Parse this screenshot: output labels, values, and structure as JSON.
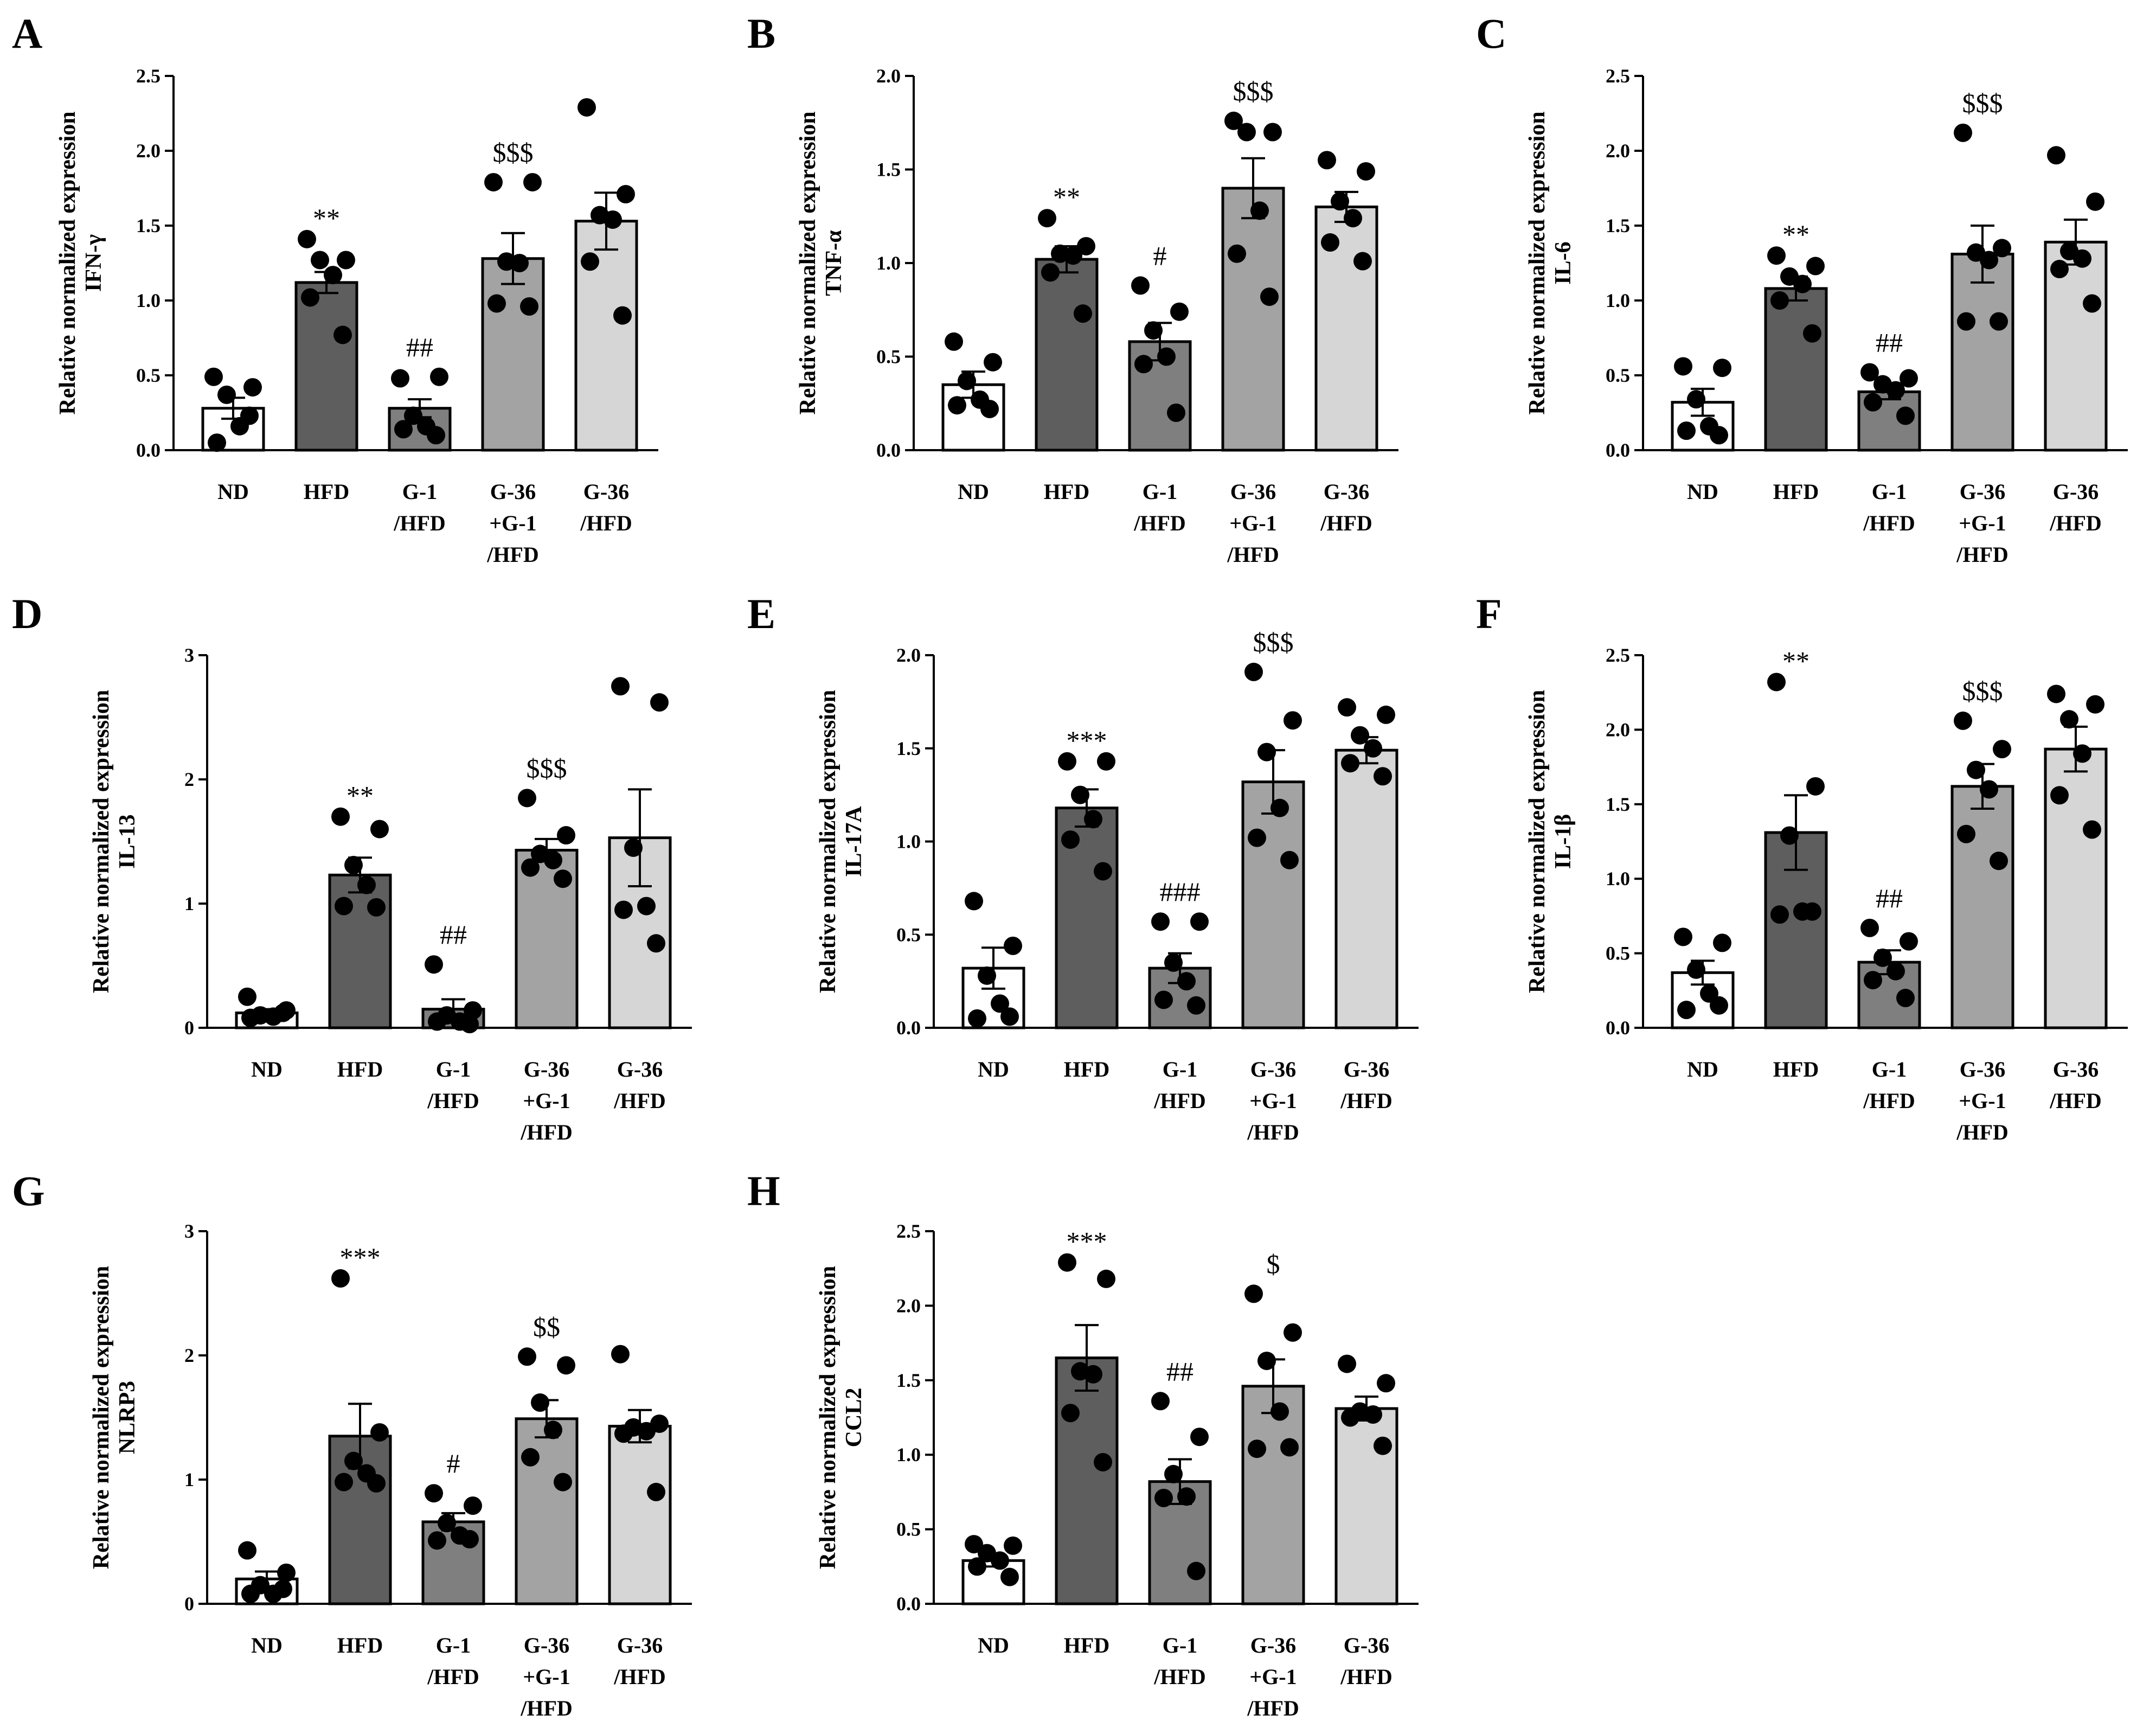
{
  "figure": {
    "ylabel": "Relative normalized expression"
  },
  "colors": {
    "ND": "#ffffff",
    "HFD": "#5e5e5e",
    "G-1/HFD": "#7f7f7f",
    "G-36+G-1/HFD": "#a3a3a3",
    "G-36/HFD": "#d6d6d6",
    "dot": "#000000"
  },
  "chart_data": [
    {
      "panel": "A",
      "type": "bar",
      "ylabel": "IFN-γ",
      "ylim": [
        0,
        2.5
      ],
      "yticks": [
        "0.0",
        "0.5",
        "1.0",
        "1.5",
        "2.0",
        "2.5"
      ],
      "categories": [
        [
          "ND"
        ],
        [
          "HFD"
        ],
        [
          "G-1",
          "/HFD"
        ],
        [
          "G-36",
          "+G-1",
          "/HFD"
        ],
        [
          "G-36",
          "/HFD"
        ]
      ],
      "means": [
        0.28,
        1.12,
        0.28,
        1.28,
        1.53
      ],
      "sem": [
        0.07,
        0.07,
        0.06,
        0.17,
        0.19
      ],
      "points": [
        [
          0.49,
          0.42,
          0.37,
          0.16,
          0.05,
          0.23
        ],
        [
          1.41,
          1.27,
          1.27,
          1.17,
          1.02,
          0.77
        ],
        [
          0.48,
          0.49,
          0.23,
          0.16,
          0.14,
          0.1
        ],
        [
          1.79,
          1.79,
          1.26,
          1.25,
          0.98,
          0.96
        ],
        [
          2.29,
          1.71,
          1.57,
          1.54,
          1.26,
          0.9
        ]
      ],
      "sig": [
        "",
        "**",
        "##",
        "$$$",
        ""
      ]
    },
    {
      "panel": "B",
      "type": "bar",
      "ylabel": "TNF-α",
      "ylim": [
        0,
        2.0
      ],
      "yticks": [
        "0.0",
        "0.5",
        "1.0",
        "1.5",
        "2.0"
      ],
      "categories": [
        [
          "ND"
        ],
        [
          "HFD"
        ],
        [
          "G-1",
          "/HFD"
        ],
        [
          "G-36",
          "+G-1",
          "/HFD"
        ],
        [
          "G-36",
          "/HFD"
        ]
      ],
      "means": [
        0.35,
        1.02,
        0.58,
        1.4,
        1.3
      ],
      "sem": [
        0.07,
        0.07,
        0.1,
        0.16,
        0.08
      ],
      "points": [
        [
          0.58,
          0.47,
          0.37,
          0.27,
          0.24,
          0.22
        ],
        [
          1.24,
          1.09,
          1.05,
          1.04,
          0.95,
          0.73
        ],
        [
          0.88,
          0.74,
          0.64,
          0.5,
          0.46,
          0.2
        ],
        [
          1.76,
          1.7,
          1.7,
          1.28,
          1.05,
          0.82
        ],
        [
          1.55,
          1.49,
          1.33,
          1.24,
          1.11,
          1.01
        ]
      ],
      "sig": [
        "",
        "**",
        "#",
        "$$$",
        ""
      ]
    },
    {
      "panel": "C",
      "type": "bar",
      "ylabel": "IL-6",
      "ylim": [
        0,
        2.5
      ],
      "yticks": [
        "0.0",
        "0.5",
        "1.0",
        "1.5",
        "2.0",
        "2.5"
      ],
      "categories": [
        [
          "ND"
        ],
        [
          "HFD"
        ],
        [
          "G-1",
          "/HFD"
        ],
        [
          "G-36",
          "+G-1",
          "/HFD"
        ],
        [
          "G-36",
          "/HFD"
        ]
      ],
      "means": [
        0.32,
        1.08,
        0.39,
        1.31,
        1.39
      ],
      "sem": [
        0.09,
        0.08,
        0.05,
        0.19,
        0.15
      ],
      "points": [
        [
          0.56,
          0.55,
          0.34,
          0.16,
          0.13,
          0.1
        ],
        [
          1.3,
          1.23,
          1.16,
          1.11,
          1.0,
          0.78
        ],
        [
          0.52,
          0.48,
          0.44,
          0.4,
          0.32,
          0.23
        ],
        [
          2.12,
          1.35,
          1.32,
          1.27,
          0.86,
          0.86
        ],
        [
          1.97,
          1.66,
          1.33,
          1.28,
          1.21,
          0.98
        ]
      ],
      "sig": [
        "",
        "**",
        "##",
        "$$$",
        ""
      ]
    },
    {
      "panel": "D",
      "type": "bar",
      "ylabel": "IL-13",
      "ylim": [
        0,
        3
      ],
      "yticks": [
        "0",
        "1",
        "2",
        "3"
      ],
      "categories": [
        [
          "ND"
        ],
        [
          "HFD"
        ],
        [
          "G-1",
          "/HFD"
        ],
        [
          "G-36",
          "+G-1",
          "/HFD"
        ],
        [
          "G-36",
          "/HFD"
        ]
      ],
      "means": [
        0.12,
        1.23,
        0.15,
        1.43,
        1.53
      ],
      "sem": [
        0.03,
        0.14,
        0.08,
        0.09,
        0.39
      ],
      "points": [
        [
          0.25,
          0.14,
          0.1,
          0.09,
          0.08,
          0.12
        ],
        [
          1.7,
          1.6,
          1.31,
          1.15,
          0.98,
          0.97
        ],
        [
          0.51,
          0.14,
          0.1,
          0.05,
          0.05,
          0.03
        ],
        [
          1.85,
          1.55,
          1.4,
          1.35,
          1.29,
          1.2
        ],
        [
          2.75,
          2.62,
          1.45,
          0.98,
          0.95,
          0.68
        ]
      ],
      "sig": [
        "",
        "**",
        "##",
        "$$$",
        ""
      ]
    },
    {
      "panel": "E",
      "type": "bar",
      "ylabel": "IL-17A",
      "ylim": [
        0,
        2.0
      ],
      "yticks": [
        "0.0",
        "0.5",
        "1.0",
        "1.5",
        "2.0"
      ],
      "categories": [
        [
          "ND"
        ],
        [
          "HFD"
        ],
        [
          "G-1",
          "/HFD"
        ],
        [
          "G-36",
          "+G-1",
          "/HFD"
        ],
        [
          "G-36",
          "/HFD"
        ]
      ],
      "means": [
        0.32,
        1.18,
        0.32,
        1.32,
        1.49
      ],
      "sem": [
        0.11,
        0.1,
        0.08,
        0.17,
        0.07
      ],
      "points": [
        [
          0.68,
          0.44,
          0.28,
          0.13,
          0.05,
          0.06
        ],
        [
          1.43,
          1.43,
          1.25,
          1.12,
          1.01,
          0.84
        ],
        [
          0.57,
          0.57,
          0.35,
          0.25,
          0.15,
          0.12
        ],
        [
          1.91,
          1.65,
          1.48,
          1.18,
          1.02,
          0.9
        ],
        [
          1.72,
          1.68,
          1.57,
          1.5,
          1.42,
          1.35
        ]
      ],
      "sig": [
        "",
        "***",
        "###",
        "$$$",
        ""
      ]
    },
    {
      "panel": "F",
      "type": "bar",
      "ylabel": "IL-1β",
      "ylim": [
        0,
        2.5
      ],
      "yticks": [
        "0.0",
        "0.5",
        "1.0",
        "1.5",
        "2.0",
        "2.5"
      ],
      "categories": [
        [
          "ND"
        ],
        [
          "HFD"
        ],
        [
          "G-1",
          "/HFD"
        ],
        [
          "G-36",
          "+G-1",
          "/HFD"
        ],
        [
          "G-36",
          "/HFD"
        ]
      ],
      "means": [
        0.37,
        1.31,
        0.44,
        1.62,
        1.87
      ],
      "sem": [
        0.08,
        0.25,
        0.08,
        0.15,
        0.15
      ],
      "points": [
        [
          0.61,
          0.57,
          0.39,
          0.23,
          0.12,
          0.15
        ],
        [
          2.32,
          1.62,
          1.29,
          0.78,
          0.76,
          0.78
        ],
        [
          0.67,
          0.58,
          0.47,
          0.38,
          0.32,
          0.2
        ],
        [
          2.06,
          1.87,
          1.73,
          1.6,
          1.3,
          1.12
        ],
        [
          2.24,
          2.17,
          2.07,
          1.84,
          1.56,
          1.33
        ]
      ],
      "sig": [
        "",
        "**",
        "##",
        "$$$",
        ""
      ]
    },
    {
      "panel": "G",
      "type": "bar",
      "ylabel": "NLRP3",
      "ylim": [
        0,
        3
      ],
      "yticks": [
        "0",
        "1",
        "2",
        "3"
      ],
      "categories": [
        [
          "ND"
        ],
        [
          "HFD"
        ],
        [
          "G-1",
          "/HFD"
        ],
        [
          "G-36",
          "+G-1",
          "/HFD"
        ],
        [
          "G-36",
          "/HFD"
        ]
      ],
      "means": [
        0.2,
        1.35,
        0.66,
        1.49,
        1.43
      ],
      "sem": [
        0.06,
        0.26,
        0.07,
        0.15,
        0.13
      ],
      "points": [
        [
          0.43,
          0.25,
          0.15,
          0.08,
          0.08,
          0.12
        ],
        [
          2.62,
          1.38,
          1.15,
          1.05,
          0.98,
          0.97
        ],
        [
          0.89,
          0.79,
          0.65,
          0.55,
          0.51,
          0.52
        ],
        [
          1.99,
          1.92,
          1.62,
          1.4,
          1.18,
          0.98
        ],
        [
          2.01,
          1.45,
          1.42,
          1.39,
          1.37,
          0.9
        ]
      ],
      "sig": [
        "",
        "***",
        "#",
        "$$",
        ""
      ]
    },
    {
      "panel": "H",
      "type": "bar",
      "ylabel": "CCL2",
      "ylim": [
        0,
        2.5
      ],
      "yticks": [
        "0.0",
        "0.5",
        "1.0",
        "1.5",
        "2.0",
        "2.5"
      ],
      "categories": [
        [
          "ND"
        ],
        [
          "HFD"
        ],
        [
          "G-1",
          "/HFD"
        ],
        [
          "G-36",
          "+G-1",
          "/HFD"
        ],
        [
          "G-36",
          "/HFD"
        ]
      ],
      "means": [
        0.29,
        1.65,
        0.82,
        1.46,
        1.31
      ],
      "sem": [
        0.04,
        0.22,
        0.15,
        0.18,
        0.08
      ],
      "points": [
        [
          0.4,
          0.39,
          0.34,
          0.29,
          0.25,
          0.18
        ],
        [
          2.29,
          2.18,
          1.56,
          1.54,
          1.28,
          0.95
        ],
        [
          1.36,
          1.12,
          0.87,
          0.72,
          0.71,
          0.22
        ],
        [
          2.08,
          1.82,
          1.63,
          1.29,
          1.04,
          1.05
        ],
        [
          1.61,
          1.48,
          1.29,
          1.27,
          1.25,
          1.06
        ]
      ],
      "sig": [
        "",
        "***",
        "##",
        "$",
        ""
      ]
    }
  ]
}
